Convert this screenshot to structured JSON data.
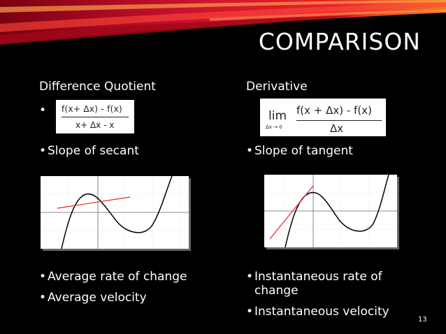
{
  "slide": {
    "title": "COMPARISON",
    "page_number": "13"
  },
  "left": {
    "heading": "Difference Quotient",
    "bullet_empty": "",
    "formula": {
      "numerator": "f(x+ Δx) - f(x)",
      "denominator": "x+ Δx - x"
    },
    "bullet_slope": "Slope of secant",
    "bullet_rate": "Average rate of change",
    "bullet_velocity": "Average velocity"
  },
  "right": {
    "heading": "Derivative",
    "formula": {
      "lim": "lim",
      "lim_sub": "Δx → 0",
      "numerator": "f(x + Δx) - f(x)",
      "denominator": "Δx"
    },
    "bullet_slope": "Slope of tangent",
    "bullet_rate_line1": "Instantaneous rate of",
    "bullet_rate_line2": "change",
    "bullet_velocity": "Instantaneous velocity"
  },
  "bullet_glyph": "•",
  "colors": {
    "background": "#000000",
    "text": "#ffffff",
    "line": "#e8232b",
    "banner_red": "#c8102e",
    "banner_orange": "#f47a20"
  }
}
